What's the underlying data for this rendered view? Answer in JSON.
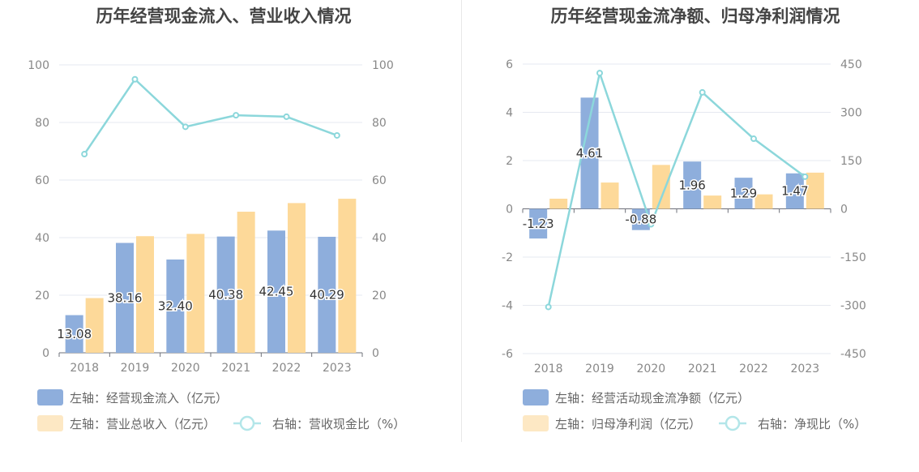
{
  "colors": {
    "bar_blue": "#8eaedc",
    "bar_orange": "#fdd999",
    "line": "#8cd7db",
    "grid": "#e6e9f0",
    "axis": "#d4d7de",
    "text": "#888888",
    "title": "#444444",
    "label": "#333333"
  },
  "chart_data": [
    {
      "type": "bar",
      "title": "历年经营现金流入、营业收入情况",
      "categories": [
        "2018",
        "2019",
        "2020",
        "2021",
        "2022",
        "2023"
      ],
      "left_axis": {
        "ticks": [
          "0",
          "20",
          "40",
          "60",
          "80",
          "100"
        ],
        "range": [
          0,
          100
        ]
      },
      "right_axis": {
        "ticks": [
          "0",
          "20",
          "40",
          "60",
          "80",
          "100"
        ],
        "range": [
          0,
          100
        ]
      },
      "grid": true,
      "series": [
        {
          "name": "左轴：经营现金流入（亿元）",
          "kind": "bar",
          "axis": "left",
          "color": "#8eaedc",
          "values": [
            13.08,
            38.16,
            32.4,
            40.38,
            42.45,
            40.29
          ],
          "labels": [
            "13.08",
            "38.16",
            "32.40",
            "40.38",
            "42.45",
            "40.29"
          ]
        },
        {
          "name": "左轴：营业总收入（亿元）",
          "kind": "bar",
          "axis": "left",
          "color": "#fdd999",
          "values": [
            19,
            40.5,
            41.3,
            49,
            52,
            53.5
          ]
        },
        {
          "name": "右轴：营收现金比（%）",
          "kind": "line",
          "axis": "right",
          "color": "#8cd7db",
          "values": [
            69,
            95,
            78.5,
            82.5,
            82,
            75.5
          ]
        }
      ],
      "legend_rows": [
        [
          0
        ],
        [
          1,
          2
        ]
      ]
    },
    {
      "type": "bar",
      "title": "历年经营现金流净额、归母净利润情况",
      "categories": [
        "2018",
        "2019",
        "2020",
        "2021",
        "2022",
        "2023"
      ],
      "left_axis": {
        "ticks": [
          "-6",
          "-4",
          "-2",
          "0",
          "2",
          "4",
          "6"
        ],
        "range": [
          -6,
          6
        ]
      },
      "right_axis": {
        "ticks": [
          "-450",
          "-300",
          "-150",
          "0",
          "150",
          "300",
          "450"
        ],
        "range": [
          -450,
          450
        ]
      },
      "grid": true,
      "series": [
        {
          "name": "左轴：经营活动现金流净额（亿元）",
          "kind": "bar",
          "axis": "left",
          "color": "#8eaedc",
          "values": [
            -1.23,
            4.61,
            -0.88,
            1.96,
            1.29,
            1.47
          ],
          "labels": [
            "-1.23",
            "4.61",
            "-0.88",
            "1.96",
            "1.29",
            "1.47"
          ]
        },
        {
          "name": "左轴：归母净利润（亿元）",
          "kind": "bar",
          "axis": "left",
          "color": "#fdd999",
          "values": [
            0.42,
            1.09,
            1.82,
            0.55,
            0.6,
            1.5
          ]
        },
        {
          "name": "右轴：净现比（%）",
          "kind": "line",
          "axis": "right",
          "color": "#8cd7db",
          "values": [
            -305,
            422,
            -48,
            362,
            218,
            100
          ]
        }
      ],
      "legend_rows": [
        [
          0
        ],
        [
          1,
          2
        ]
      ]
    }
  ]
}
